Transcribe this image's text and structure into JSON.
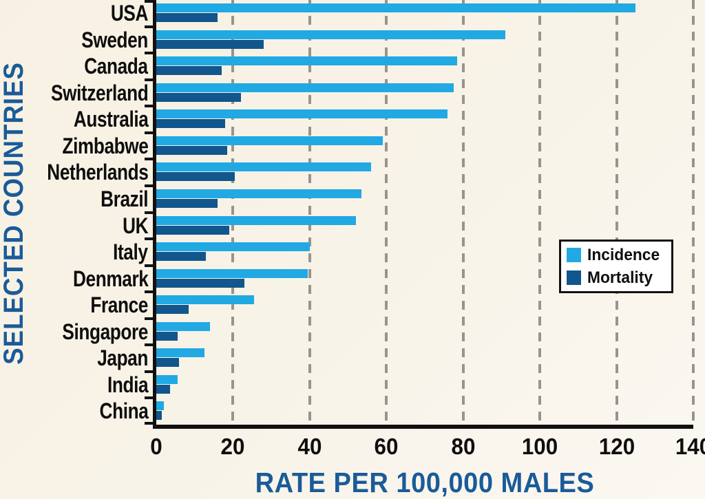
{
  "figure": {
    "x_axis_label": "RATE PER 100,000 MALES",
    "y_axis_label": "SELECTED COUNTRIES"
  },
  "legend": {
    "items": [
      {
        "label": "Incidence",
        "color": "#21a9e3"
      },
      {
        "label": "Mortality",
        "color": "#11568c"
      }
    ]
  },
  "colors": {
    "background": "#f8f2e6",
    "incidence": "#21a9e3",
    "mortality": "#11568c",
    "axis_title": "#1a5b99",
    "axis_line": "#111111",
    "gridline": "#979490",
    "label_text": "#0e0e0e",
    "legend_bg": "#ffffff",
    "legend_border": "#111111"
  },
  "chart_data": {
    "type": "bar",
    "orientation": "horizontal",
    "title": "",
    "xlabel": "RATE PER 100,000 MALES",
    "ylabel": "SELECTED COUNTRIES",
    "xlim": [
      0,
      140
    ],
    "x_ticks": [
      0,
      20,
      40,
      60,
      80,
      100,
      120,
      140
    ],
    "grid": "vertical dashed",
    "legend_position": "middle-right",
    "categories": [
      "USA",
      "Sweden",
      "Canada",
      "Switzerland",
      "Australia",
      "Zimbabwe",
      "Netherlands",
      "Brazil",
      "UK",
      "Italy",
      "Denmark",
      "France",
      "Singapore",
      "Japan",
      "India",
      "China"
    ],
    "series": [
      {
        "name": "Incidence",
        "color": "#21a9e3",
        "values": [
          125,
          91,
          78.5,
          77.5,
          76,
          59,
          56,
          53.5,
          52,
          40,
          39.5,
          25.5,
          14,
          12.5,
          5.5,
          2
        ]
      },
      {
        "name": "Mortality",
        "color": "#11568c",
        "values": [
          16,
          28,
          17,
          22,
          18,
          18.5,
          20.5,
          16,
          19,
          13,
          23,
          8.5,
          5.5,
          6,
          3.5,
          1.5
        ]
      }
    ]
  }
}
